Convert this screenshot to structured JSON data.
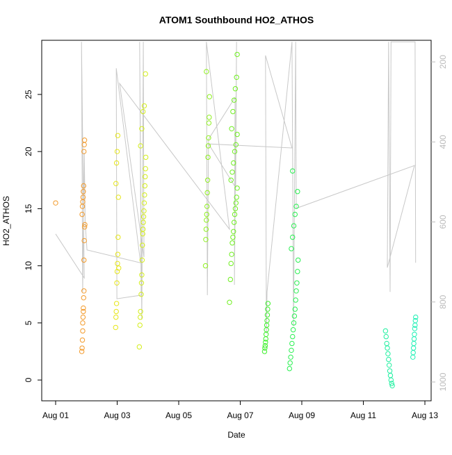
{
  "chart_data": {
    "type": "scatter",
    "title": "ATOM1 Southbound HO2_ATHOS",
    "xlabel": "Date",
    "ylabel": "HO2_ATHOS",
    "xlim": [
      -0.452,
      12.203
    ],
    "ylim": [
      -1.82,
      29.74
    ],
    "y2lim": [
      1047,
      146
    ],
    "xticks": [
      {
        "value": 0,
        "label": "Aug 01"
      },
      {
        "value": 2,
        "label": "Aug 03"
      },
      {
        "value": 4,
        "label": "Aug 05"
      },
      {
        "value": 6,
        "label": "Aug 07"
      },
      {
        "value": 8,
        "label": "Aug 09"
      },
      {
        "value": 10,
        "label": "Aug 11"
      },
      {
        "value": 12,
        "label": "Aug 13"
      }
    ],
    "yticks": [
      0,
      5,
      10,
      15,
      20,
      25
    ],
    "y2ticks": [
      200,
      400,
      600,
      800,
      1000
    ],
    "series": [
      {
        "color": "#f39a2a",
        "x": [
          0,
          0.85,
          0.86,
          0.87,
          0.88,
          0.88,
          0.89,
          0.9,
          0.9,
          0.91,
          0.92,
          0.92,
          0.93,
          0.94,
          0.95,
          0.86,
          0.87,
          0.88,
          0.89,
          0.9,
          0.91,
          0.92,
          0.93,
          0.94
        ],
        "values": [
          15.5,
          2.5,
          2.8,
          3.5,
          4.3,
          5.0,
          5.5,
          6.0,
          6.3,
          7.2,
          7.8,
          10.5,
          12.2,
          13.4,
          13.6,
          14.5,
          15.2,
          15.6,
          16.0,
          16.5,
          17.0,
          20.0,
          20.6,
          21.0
        ]
      },
      {
        "color": "#e6e619",
        "x": [
          1.95,
          1.96,
          1.97,
          1.98,
          1.99,
          2.0,
          2.01,
          2.02,
          2.03,
          2.04,
          1.96,
          1.98,
          2.0,
          2.02,
          2.05
        ],
        "values": [
          4.6,
          5.5,
          6.0,
          6.7,
          8.5,
          9.5,
          10.2,
          11.0,
          12.5,
          16.0,
          17.2,
          19.0,
          20.0,
          21.4,
          9.8
        ]
      },
      {
        "color": "#d4ee1a",
        "x": [
          2.72,
          2.74,
          2.75,
          2.76,
          2.78,
          2.79,
          2.8,
          2.81,
          2.82,
          2.83,
          2.84,
          2.85,
          2.86,
          2.87,
          2.88,
          2.89,
          2.9,
          2.91,
          2.92,
          2.93,
          2.76,
          2.8,
          2.84,
          2.88,
          2.92
        ],
        "values": [
          2.9,
          4.8,
          5.5,
          6.0,
          7.5,
          8.5,
          9.2,
          10.5,
          11.8,
          12.8,
          13.2,
          13.8,
          14.3,
          14.8,
          15.5,
          16.2,
          17.0,
          17.8,
          18.5,
          19.5,
          20.5,
          22.0,
          23.5,
          24.0,
          26.8
        ]
      },
      {
        "color": "#8ef01e",
        "x": [
          4.87,
          4.88,
          4.89,
          4.9,
          4.91,
          4.92,
          4.93,
          4.94,
          4.95,
          4.96,
          4.97,
          4.98,
          4.99,
          5.0,
          4.9
        ],
        "values": [
          10.0,
          12.3,
          13.2,
          14.0,
          14.5,
          15.2,
          16.4,
          17.5,
          19.5,
          20.5,
          21.2,
          22.5,
          23.0,
          24.8,
          27.0
        ]
      },
      {
        "color": "#6ef01e",
        "x": [
          5.65,
          5.68,
          5.7,
          5.72,
          5.74,
          5.76,
          5.78,
          5.8,
          5.82,
          5.84,
          5.86,
          5.88,
          5.9,
          5.7,
          5.74,
          5.78,
          5.82,
          5.86,
          5.9,
          5.72,
          5.76,
          5.8,
          5.84,
          5.88,
          5.9
        ],
        "values": [
          6.8,
          8.8,
          10.2,
          11.0,
          12.0,
          12.5,
          13.0,
          13.8,
          14.5,
          15.0,
          15.5,
          16.0,
          16.8,
          17.5,
          18.2,
          19.0,
          20.0,
          20.6,
          21.5,
          22.0,
          23.5,
          24.5,
          25.5,
          26.5,
          28.5
        ]
      },
      {
        "color": "#3cf02a",
        "x": [
          6.79,
          6.8,
          6.81,
          6.82,
          6.83,
          6.84,
          6.85,
          6.86,
          6.87,
          6.88,
          6.89,
          6.9
        ],
        "values": [
          2.5,
          2.8,
          3.0,
          3.3,
          3.6,
          4.0,
          4.4,
          4.8,
          5.2,
          5.7,
          6.2,
          6.7
        ]
      },
      {
        "color": "#28f050",
        "x": [
          7.6,
          7.62,
          7.64,
          7.66,
          7.68,
          7.7,
          7.72,
          7.74,
          7.76,
          7.78,
          7.8,
          7.82,
          7.84,
          7.86,
          7.88,
          7.66,
          7.7,
          7.74,
          7.78,
          7.82,
          7.86,
          7.7
        ],
        "values": [
          1.0,
          1.5,
          2.0,
          2.6,
          3.2,
          3.8,
          4.4,
          5.0,
          5.6,
          6.2,
          7.0,
          7.8,
          8.5,
          9.5,
          10.5,
          11.5,
          12.5,
          13.5,
          14.5,
          15.2,
          16.5,
          18.3
        ]
      },
      {
        "color": "#1ef0a0",
        "x": [
          10.72,
          10.74,
          10.76,
          10.78,
          10.8,
          10.82,
          10.84,
          10.86,
          10.88,
          10.9,
          10.92,
          10.94
        ],
        "values": [
          4.3,
          3.8,
          3.2,
          2.8,
          2.3,
          1.8,
          1.3,
          0.8,
          0.4,
          0.0,
          -0.3,
          -0.5
        ]
      },
      {
        "color": "#1ef0b4",
        "x": [
          11.61,
          11.62,
          11.63,
          11.64,
          11.65,
          11.66,
          11.67,
          11.68,
          11.69,
          11.7
        ],
        "values": [
          2.0,
          2.4,
          2.8,
          3.2,
          3.6,
          4.0,
          4.5,
          4.8,
          5.2,
          5.5
        ]
      },
      {
        "color": "#c8c8c8",
        "axis": "y2",
        "x": [
          0,
          0.93,
          0.84,
          0.88,
          0.93,
          0.96,
          1.02,
          2.76,
          1.97,
          1.99,
          2.78,
          2.73,
          2.8,
          2.85,
          2.87,
          2.08,
          5.65,
          4.9,
          4.93,
          4.97,
          5.83,
          5.81,
          5.88,
          5.85,
          4.97,
          7.68,
          6.82,
          6.85,
          6.87,
          7.68,
          7.73,
          7.8,
          7.82,
          11.66,
          10.78,
          10.82,
          10.87,
          10.9,
          11.68,
          11.7
        ],
        "values": [
          630,
          740,
          150,
          775,
          427,
          601,
          670,
          702,
          216,
          792,
          783,
          150,
          844,
          150,
          688,
          254,
          618,
          150,
          783,
          393,
          289,
          757,
          150,
          514,
          405,
          415,
          184,
          879,
          775,
          150,
          861,
          150,
          566,
          459,
          714,
          150,
          775,
          150,
          150,
          702
        ]
      }
    ]
  }
}
